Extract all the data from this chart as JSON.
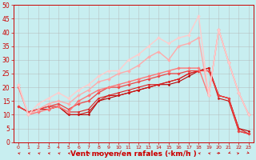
{
  "background_color": "#c8eef0",
  "grid_color": "#b0b0b0",
  "xlabel": "Vent moyen/en rafales ( km/h )",
  "xlim_min": -0.5,
  "xlim_max": 23.5,
  "ylim_min": 0,
  "ylim_max": 50,
  "yticks": [
    0,
    5,
    10,
    15,
    20,
    25,
    30,
    35,
    40,
    45,
    50
  ],
  "xticks": [
    0,
    1,
    2,
    3,
    4,
    5,
    6,
    7,
    8,
    9,
    10,
    11,
    12,
    13,
    14,
    15,
    16,
    17,
    18,
    19,
    20,
    21,
    22,
    23
  ],
  "series": [
    {
      "x": [
        0,
        1,
        2,
        3,
        4,
        5,
        6,
        7,
        8,
        9,
        10,
        11,
        12,
        13,
        14,
        15,
        16,
        17,
        18,
        19,
        20,
        21,
        22,
        23
      ],
      "y": [
        13,
        11,
        12,
        12,
        13,
        10,
        10,
        10,
        15,
        16,
        17,
        18,
        19,
        20,
        21,
        21,
        22,
        24,
        26,
        27,
        17,
        16,
        5,
        4
      ],
      "color": "#bb0000",
      "lw": 0.8,
      "marker": "D",
      "ms": 1.5
    },
    {
      "x": [
        0,
        1,
        2,
        3,
        4,
        5,
        6,
        7,
        8,
        9,
        10,
        11,
        12,
        13,
        14,
        15,
        16,
        17,
        18,
        19,
        20,
        21,
        22,
        23
      ],
      "y": [
        13,
        11,
        12,
        12,
        13,
        10,
        10,
        11,
        15,
        17,
        17,
        18,
        19,
        20,
        21,
        22,
        23,
        25,
        26,
        27,
        16,
        15,
        4,
        3
      ],
      "color": "#cc1111",
      "lw": 0.8,
      "marker": "D",
      "ms": 1.5
    },
    {
      "x": [
        0,
        1,
        2,
        3,
        4,
        5,
        6,
        7,
        8,
        9,
        10,
        11,
        12,
        13,
        14,
        15,
        16,
        17,
        18,
        19,
        20,
        21,
        22,
        23
      ],
      "y": [
        13,
        11,
        12,
        13,
        13,
        11,
        11,
        12,
        16,
        17,
        18,
        19,
        20,
        21,
        21,
        22,
        23,
        25,
        26,
        27,
        17,
        16,
        5,
        3
      ],
      "color": "#dd2222",
      "lw": 0.8,
      "marker": "D",
      "ms": 1.5
    },
    {
      "x": [
        0,
        1,
        2,
        3,
        4,
        5,
        6,
        7,
        8,
        9,
        10,
        11,
        12,
        13,
        14,
        15,
        16,
        17,
        18,
        19,
        20,
        21,
        22,
        23
      ],
      "y": [
        13,
        11,
        12,
        13,
        14,
        12,
        14,
        15,
        18,
        20,
        20,
        21,
        22,
        23,
        24,
        25,
        25,
        26,
        26,
        26,
        17,
        16,
        4,
        3
      ],
      "color": "#ee4444",
      "lw": 0.9,
      "marker": "D",
      "ms": 1.8
    },
    {
      "x": [
        0,
        1,
        2,
        3,
        4,
        5,
        6,
        7,
        8,
        9,
        10,
        11,
        12,
        13,
        14,
        15,
        16,
        17,
        18,
        19,
        20,
        21,
        22,
        23
      ],
      "y": [
        20,
        10,
        11,
        12,
        13,
        11,
        15,
        17,
        19,
        20,
        21,
        22,
        23,
        24,
        25,
        26,
        27,
        27,
        27,
        17,
        41,
        29,
        18,
        10
      ],
      "color": "#ff7777",
      "lw": 1.0,
      "marker": "D",
      "ms": 2.0
    },
    {
      "x": [
        0,
        1,
        2,
        3,
        4,
        5,
        6,
        7,
        8,
        9,
        10,
        11,
        12,
        13,
        14,
        15,
        16,
        17,
        18,
        19,
        20,
        21,
        22,
        23
      ],
      "y": [
        21,
        10,
        12,
        14,
        15,
        14,
        17,
        19,
        22,
        23,
        25,
        26,
        28,
        31,
        33,
        30,
        35,
        36,
        38,
        17,
        41,
        29,
        18,
        10
      ],
      "color": "#ffaaaa",
      "lw": 1.0,
      "marker": "D",
      "ms": 2.0
    },
    {
      "x": [
        0,
        1,
        2,
        3,
        4,
        5,
        6,
        7,
        8,
        9,
        10,
        11,
        12,
        13,
        14,
        15,
        16,
        17,
        18,
        19,
        20,
        21,
        22,
        23
      ],
      "y": [
        21,
        10,
        14,
        16,
        18,
        16,
        19,
        21,
        24,
        26,
        26,
        30,
        32,
        35,
        38,
        36,
        38,
        39,
        46,
        17,
        41,
        29,
        18,
        10
      ],
      "color": "#ffcccc",
      "lw": 1.0,
      "marker": "D",
      "ms": 2.0
    }
  ],
  "arrow_angles": [
    225,
    225,
    225,
    225,
    225,
    225,
    225,
    225,
    225,
    225,
    225,
    225,
    225,
    225,
    225,
    225,
    225,
    225,
    225,
    225,
    90,
    315,
    135,
    45
  ],
  "xlabel_fontsize": 6.5,
  "tick_fontsize": 4.5,
  "ytick_fontsize": 5.5
}
